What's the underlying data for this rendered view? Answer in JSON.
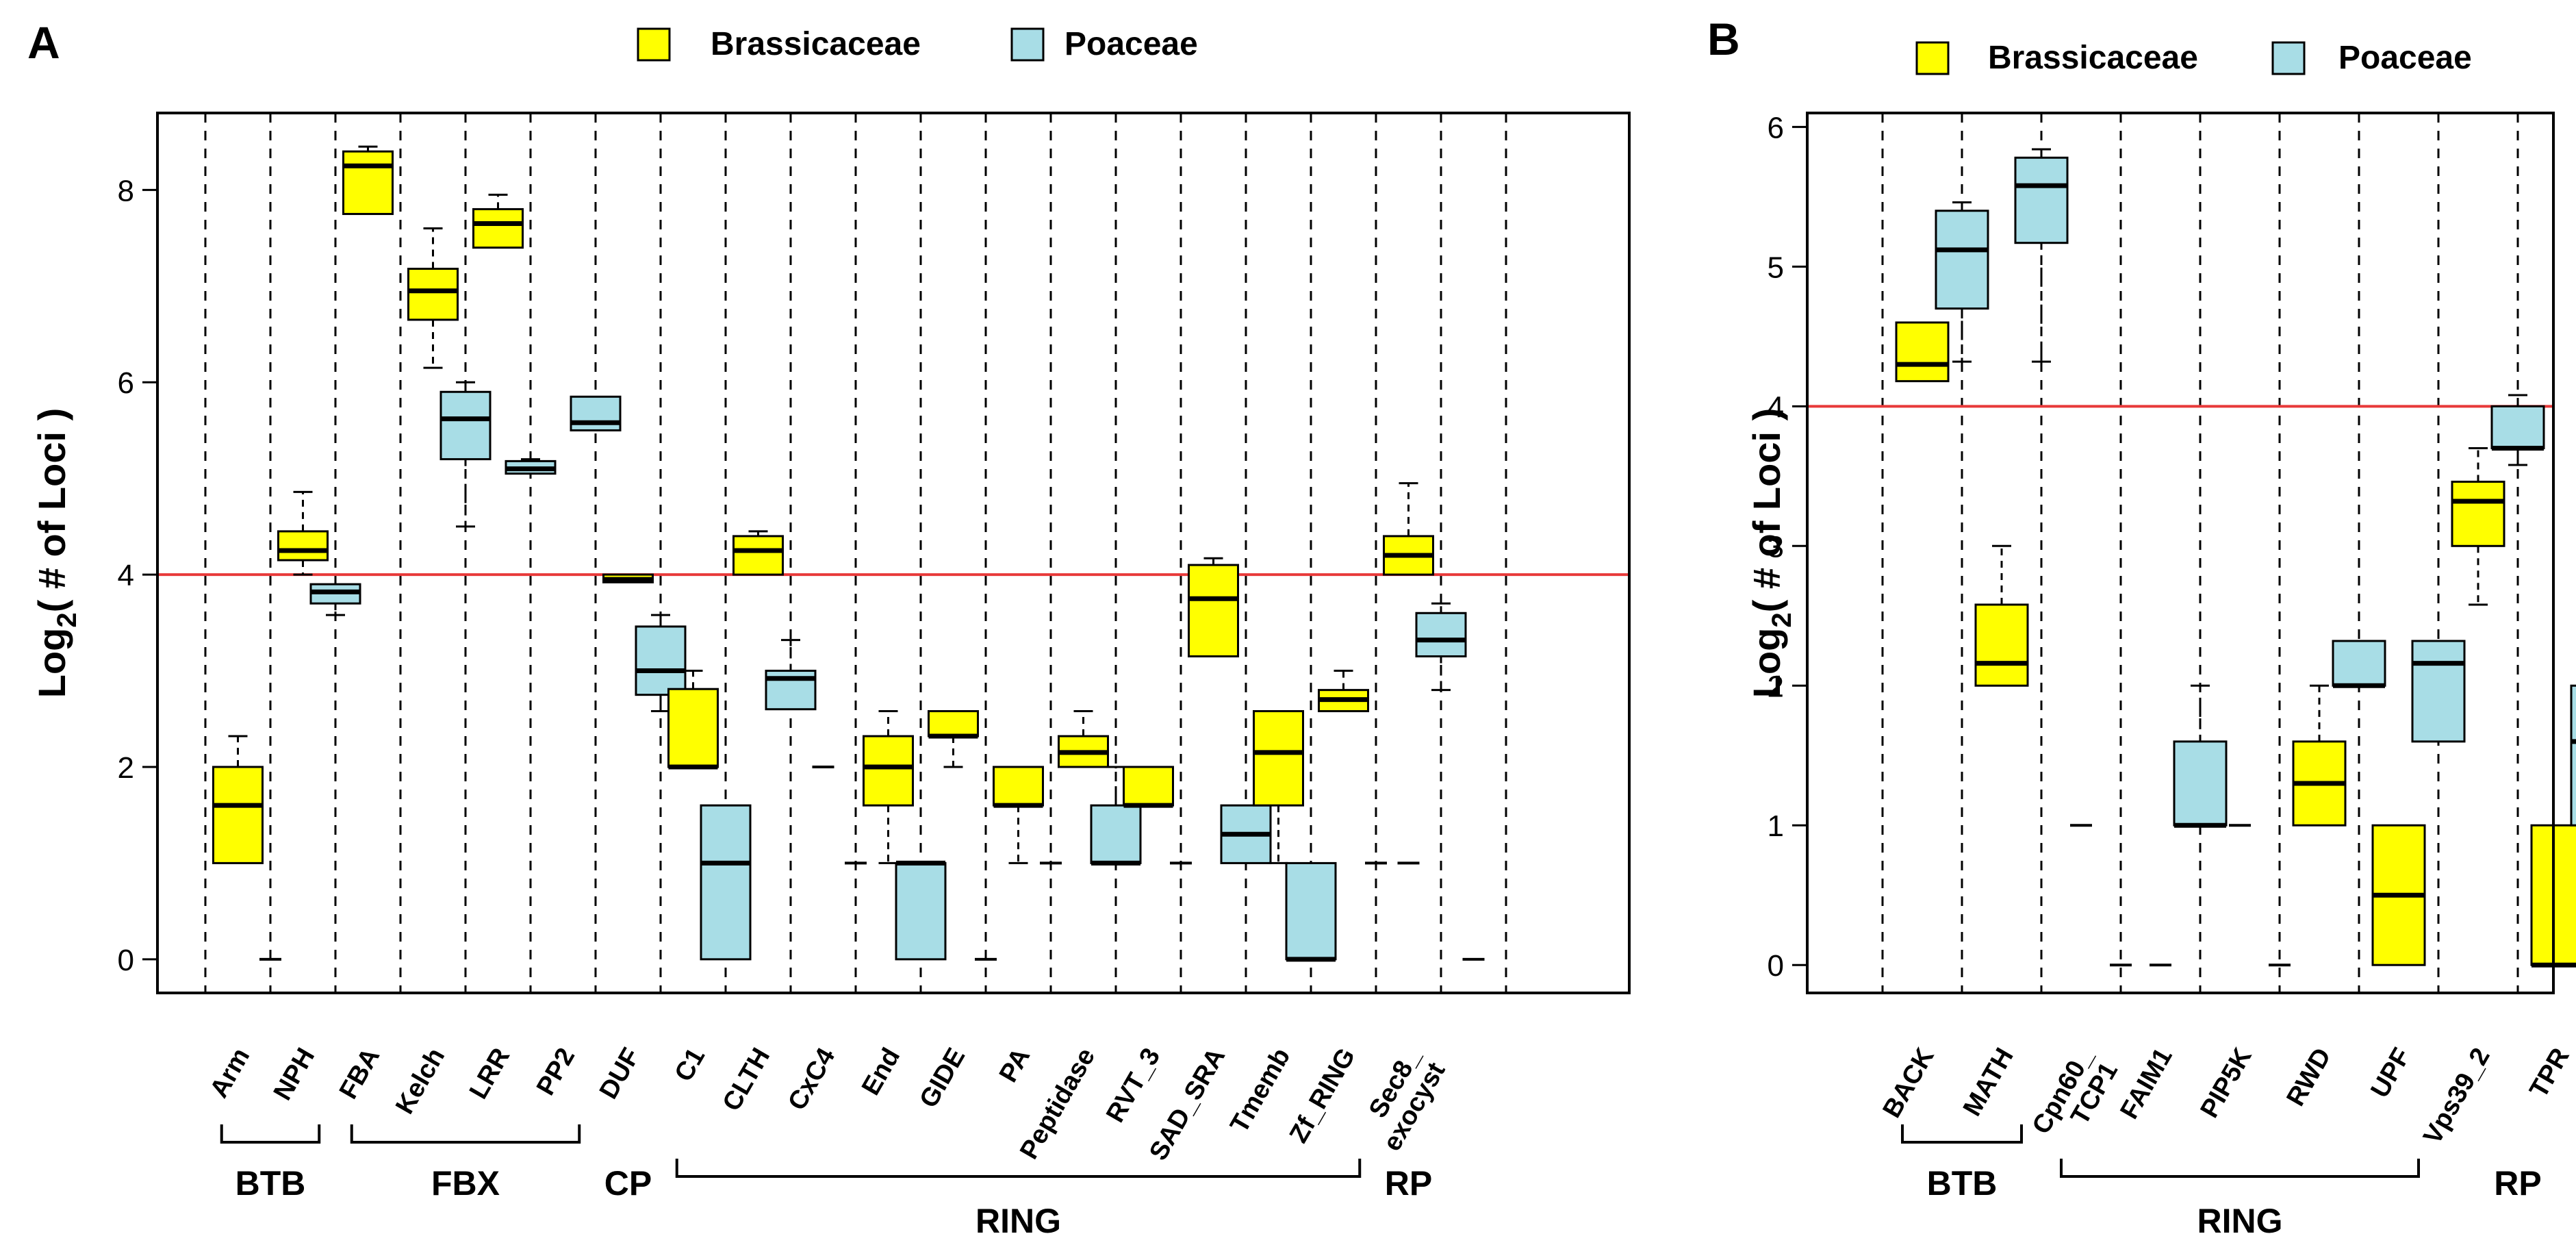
{
  "colors": {
    "brassicaceae": "#ffff00",
    "poaceae": "#a8dde6",
    "refline": "#e83a3a",
    "axis": "#000000"
  },
  "legend": {
    "entries": [
      {
        "label": "Brassicaceae",
        "color": "#ffff00"
      },
      {
        "label": "Poaceae",
        "color": "#a8dde6"
      }
    ]
  },
  "chart_data": [
    {
      "panel": "A",
      "type": "boxplot",
      "ylabel_main": "Log",
      "ylabel_sub": "2",
      "ylabel_rest": "( # of Loci )",
      "ylim": [
        -0.35,
        8.8
      ],
      "yticks": [
        0,
        2,
        4,
        6,
        8
      ],
      "reference_line": 4,
      "categories": [
        {
          "label": "Arm",
          "brassicaceae": {
            "min": 1,
            "q1": 1,
            "median": 1.6,
            "q3": 2,
            "max": 2.32
          },
          "poaceae": {
            "min": 0,
            "q1": 0,
            "median": 0,
            "q3": 0,
            "max": 0
          }
        },
        {
          "label": "NPH",
          "brassicaceae": {
            "min": 4,
            "q1": 4.15,
            "median": 4.25,
            "q3": 4.45,
            "max": 4.86
          },
          "poaceae": {
            "min": 3.58,
            "q1": 3.7,
            "median": 3.82,
            "q3": 3.9,
            "max": 3.9
          }
        },
        {
          "label": "FBA",
          "brassicaceae": {
            "min": 7.75,
            "q1": 7.75,
            "median": 8.25,
            "q3": 8.4,
            "max": 8.45
          },
          "poaceae": null
        },
        {
          "label": "Kelch",
          "brassicaceae": {
            "min": 6.15,
            "q1": 6.65,
            "median": 6.95,
            "q3": 7.18,
            "max": 7.6
          },
          "poaceae": {
            "min": 4.5,
            "q1": 5.2,
            "median": 5.62,
            "q3": 5.9,
            "max": 6
          }
        },
        {
          "label": "LRR",
          "brassicaceae": {
            "min": 7.4,
            "q1": 7.4,
            "median": 7.65,
            "q3": 7.8,
            "max": 7.95
          },
          "poaceae": {
            "min": 5.05,
            "q1": 5.05,
            "median": 5.1,
            "q3": 5.18,
            "max": 5.2
          }
        },
        {
          "label": "PP2",
          "brassicaceae": null,
          "poaceae": {
            "min": 5.5,
            "q1": 5.5,
            "median": 5.58,
            "q3": 5.85,
            "max": 5.85
          }
        },
        {
          "label": "DUF",
          "brassicaceae": {
            "min": 3.92,
            "q1": 3.92,
            "median": 3.95,
            "q3": 4,
            "max": 4
          },
          "poaceae": {
            "min": 2.58,
            "q1": 2.75,
            "median": 3,
            "q3": 3.46,
            "max": 3.58
          }
        },
        {
          "label": "C1",
          "brassicaceae": {
            "min": 2,
            "q1": 2,
            "median": 2,
            "q3": 2.81,
            "max": 3
          },
          "poaceae": {
            "min": 0,
            "q1": 0,
            "median": 1,
            "q3": 1.6,
            "max": 1.6
          }
        },
        {
          "label": "CLTH",
          "brassicaceae": {
            "min": 4,
            "q1": 4,
            "median": 4.25,
            "q3": 4.4,
            "max": 4.45
          },
          "poaceae": {
            "min": 2.6,
            "q1": 2.6,
            "median": 2.92,
            "q3": 3,
            "max": 3.32
          }
        },
        {
          "label": "CxC4",
          "brassicaceae": {
            "min": 2,
            "q1": 2,
            "median": 2,
            "q3": 2,
            "max": 2
          },
          "poaceae": {
            "min": 1,
            "q1": 1,
            "median": 1,
            "q3": 1,
            "max": 1
          }
        },
        {
          "label": "End",
          "brassicaceae": {
            "min": 1,
            "q1": 1.6,
            "median": 2,
            "q3": 2.32,
            "max": 2.58
          },
          "poaceae": {
            "min": 0,
            "q1": 0,
            "median": 1,
            "q3": 1,
            "max": 1
          }
        },
        {
          "label": "GIDE",
          "brassicaceae": {
            "min": 2,
            "q1": 2.32,
            "median": 2.32,
            "q3": 2.58,
            "max": 2.58
          },
          "poaceae": {
            "min": 0,
            "q1": 0,
            "median": 0,
            "q3": 0,
            "max": 0
          }
        },
        {
          "label": "PA",
          "brassicaceae": {
            "min": 1,
            "q1": 1.6,
            "median": 1.6,
            "q3": 2,
            "max": 2
          },
          "poaceae": {
            "min": 1,
            "q1": 1,
            "median": 1,
            "q3": 1,
            "max": 1
          }
        },
        {
          "label": "Peptidase",
          "brassicaceae": {
            "min": 2,
            "q1": 2,
            "median": 2.15,
            "q3": 2.32,
            "max": 2.58
          },
          "poaceae": {
            "min": 1,
            "q1": 1,
            "median": 1,
            "q3": 1.6,
            "max": 2
          }
        },
        {
          "label": "RVT_3",
          "brassicaceae": {
            "min": 1.6,
            "q1": 1.6,
            "median": 1.6,
            "q3": 2,
            "max": 2
          },
          "poaceae": {
            "min": 1,
            "q1": 1,
            "median": 1,
            "q3": 1,
            "max": 1
          }
        },
        {
          "label": "SAD_SRA",
          "brassicaceae": {
            "min": 3.15,
            "q1": 3.15,
            "median": 3.75,
            "q3": 4.1,
            "max": 4.17
          },
          "poaceae": {
            "min": 1,
            "q1": 1,
            "median": 1.3,
            "q3": 1.6,
            "max": 1.6
          }
        },
        {
          "label": "Tmemb",
          "brassicaceae": {
            "min": 1,
            "q1": 1.6,
            "median": 2.15,
            "q3": 2.58,
            "max": 2.58
          },
          "poaceae": {
            "min": 0,
            "q1": 0,
            "median": 0,
            "q3": 1,
            "max": 1
          }
        },
        {
          "label": "Zf_RING",
          "brassicaceae": {
            "min": 2.58,
            "q1": 2.58,
            "median": 2.7,
            "q3": 2.8,
            "max": 3
          },
          "poaceae": {
            "min": 1,
            "q1": 1,
            "median": 1,
            "q3": 1,
            "max": 1
          }
        },
        {
          "label": "Sec8_\nexocyst",
          "brassicaceae": {
            "min": 4,
            "q1": 4,
            "median": 4.2,
            "q3": 4.4,
            "max": 4.95
          },
          "poaceae": {
            "min": 2.8,
            "q1": 3.15,
            "median": 3.32,
            "q3": 3.6,
            "max": 3.7
          }
        }
      ],
      "extra_points": [
        {
          "slot": 19,
          "series": "brassicaceae",
          "value": 1
        },
        {
          "slot": 20,
          "series": "poaceae",
          "value": 0
        }
      ],
      "groups": [
        {
          "label": "BTB",
          "from": 0,
          "to": 1,
          "bracket": true,
          "row": "upper"
        },
        {
          "label": "FBX",
          "from": 2,
          "to": 5,
          "bracket": true,
          "row": "upper"
        },
        {
          "label": "CP",
          "from": 6,
          "to": 6,
          "bracket": false,
          "row": "upper"
        },
        {
          "label": "RING",
          "from": 7,
          "to": 17,
          "bracket": true,
          "row": "lower"
        },
        {
          "label": "RP",
          "from": 18,
          "to": 18,
          "bracket": false,
          "row": "upper"
        }
      ]
    },
    {
      "panel": "B",
      "type": "boxplot",
      "ylabel_main": "Log",
      "ylabel_sub": "2",
      "ylabel_rest": "( # of Loci )",
      "ylim": [
        -0.2,
        6.1
      ],
      "yticks": [
        0,
        1,
        2,
        3,
        4,
        5,
        6
      ],
      "reference_line": 4,
      "categories": [
        {
          "label": "BACK",
          "brassicaceae": {
            "min": 4.18,
            "q1": 4.18,
            "median": 4.3,
            "q3": 4.6,
            "max": 4.6
          },
          "poaceae": {
            "min": 4.32,
            "q1": 4.7,
            "median": 5.12,
            "q3": 5.4,
            "max": 5.46
          }
        },
        {
          "label": "MATH",
          "brassicaceae": {
            "min": 2,
            "q1": 2,
            "median": 2.16,
            "q3": 2.58,
            "max": 3
          },
          "poaceae": {
            "min": 4.32,
            "q1": 5.17,
            "median": 5.58,
            "q3": 5.78,
            "max": 5.84
          }
        },
        {
          "label": "Cpn60_\nTCP1",
          "brassicaceae": {
            "min": 1,
            "q1": 1,
            "median": 1,
            "q3": 1,
            "max": 1
          },
          "poaceae": {
            "min": 0,
            "q1": 0,
            "median": 0,
            "q3": 0,
            "max": 0
          }
        },
        {
          "label": "FAIM1",
          "brassicaceae": {
            "min": 0,
            "q1": 0,
            "median": 0,
            "q3": 0,
            "max": 0
          },
          "poaceae": {
            "min": 1,
            "q1": 1,
            "median": 1,
            "q3": 1.6,
            "max": 2
          }
        },
        {
          "label": "PIP5K",
          "brassicaceae": {
            "min": 1,
            "q1": 1,
            "median": 1,
            "q3": 1,
            "max": 1
          },
          "poaceae": {
            "min": 0,
            "q1": 0,
            "median": 0,
            "q3": 0,
            "max": 0
          }
        },
        {
          "label": "RWD",
          "brassicaceae": {
            "min": 1,
            "q1": 1,
            "median": 1.3,
            "q3": 1.6,
            "max": 2
          },
          "poaceae": {
            "min": 2,
            "q1": 2,
            "median": 2,
            "q3": 2.32,
            "max": 2.32
          }
        },
        {
          "label": "UPF",
          "brassicaceae": {
            "min": 0,
            "q1": 0,
            "median": 0.5,
            "q3": 1,
            "max": 1
          },
          "poaceae": {
            "min": 1.6,
            "q1": 1.6,
            "median": 2.16,
            "q3": 2.32,
            "max": 2.32
          }
        },
        {
          "label": "Vps39_2",
          "brassicaceae": {
            "min": 2.58,
            "q1": 3,
            "median": 3.32,
            "q3": 3.46,
            "max": 3.7
          },
          "poaceae": {
            "min": 3.58,
            "q1": 3.7,
            "median": 3.7,
            "q3": 4,
            "max": 4.08
          }
        },
        {
          "label": "TPR",
          "brassicaceae": {
            "min": 0,
            "q1": 0,
            "median": 0,
            "q3": 1,
            "max": 1
          },
          "poaceae": {
            "min": 1,
            "q1": 1,
            "median": 1.6,
            "q3": 2,
            "max": 2
          }
        }
      ],
      "extra_points": [],
      "groups": [
        {
          "label": "BTB",
          "from": 0,
          "to": 1,
          "bracket": true,
          "row": "upper"
        },
        {
          "label": "RING",
          "from": 2,
          "to": 6,
          "bracket": true,
          "row": "lower"
        },
        {
          "label": "RP",
          "from": 7,
          "to": 8,
          "bracket": false,
          "row": "upper"
        }
      ]
    }
  ]
}
